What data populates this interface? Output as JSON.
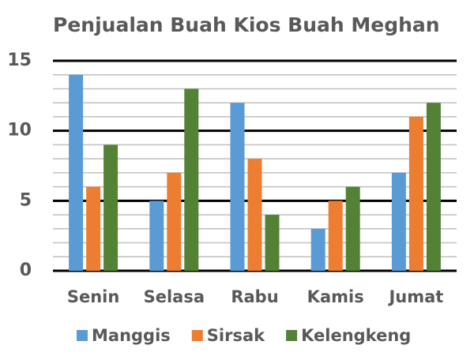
{
  "chart_data": {
    "type": "bar",
    "title": "Penjualan Buah Kios Buah Meghan",
    "categories": [
      "Senin",
      "Selasa",
      "Rabu",
      "Kamis",
      "Jumat"
    ],
    "series": [
      {
        "name": "Manggis",
        "color": "#5b9bd5",
        "values": [
          14,
          5,
          12,
          3,
          7
        ]
      },
      {
        "name": "Sirsak",
        "color": "#ed7d31",
        "values": [
          6,
          7,
          8,
          5,
          11
        ]
      },
      {
        "name": "Kelengkeng",
        "color": "#548235",
        "values": [
          9,
          13,
          4,
          6,
          12
        ]
      }
    ],
    "ylim": [
      0,
      15
    ],
    "yticks": [
      0,
      5,
      10,
      15
    ],
    "minor_yticks": [
      1,
      2,
      3,
      4,
      6,
      7,
      8,
      9,
      11,
      12,
      13,
      14
    ],
    "grid": true,
    "legend": "bottom"
  }
}
